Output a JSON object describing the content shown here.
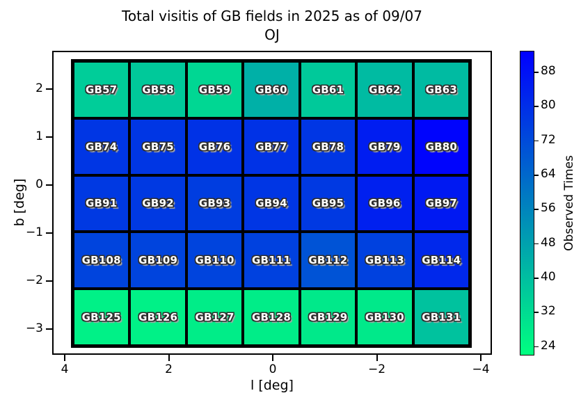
{
  "title": {
    "line1": "Total visitis of GB fields in 2025 as of 09/07",
    "line2": "OJ"
  },
  "x_axis": {
    "label": "l [deg]",
    "ticks": [
      {
        "value": 4,
        "label": "4"
      },
      {
        "value": 2,
        "label": "2"
      },
      {
        "value": 0,
        "label": "0"
      },
      {
        "value": -2,
        "label": "−2"
      },
      {
        "value": -4,
        "label": "−4"
      }
    ]
  },
  "y_axis": {
    "label": "b [deg]",
    "ticks": [
      {
        "value": 2,
        "label": "2"
      },
      {
        "value": 1,
        "label": "1"
      },
      {
        "value": 0,
        "label": "0"
      },
      {
        "value": -1,
        "label": "−1"
      },
      {
        "value": -2,
        "label": "−2"
      },
      {
        "value": -3,
        "label": "−3"
      }
    ]
  },
  "colorbar": {
    "label": "Observed Times",
    "vmin": 22,
    "vmax": 93,
    "color_low": "#00FF80",
    "color_high": "#0000FF",
    "ticks": [
      {
        "value": 88,
        "label": "88"
      },
      {
        "value": 80,
        "label": "80"
      },
      {
        "value": 72,
        "label": "72"
      },
      {
        "value": 64,
        "label": "64"
      },
      {
        "value": 56,
        "label": "56"
      },
      {
        "value": 48,
        "label": "48"
      },
      {
        "value": 40,
        "label": "40"
      },
      {
        "value": 32,
        "label": "32"
      },
      {
        "value": 24,
        "label": "24"
      }
    ]
  },
  "chart_data": {
    "type": "heatmap",
    "title": "Total visitis of GB fields in 2025 as of 09/07 OJ",
    "xlabel": "l [deg]",
    "ylabel": "b [deg]",
    "value_label": "Observed Times",
    "colormap": "green-to-blue (matplotlib winter_r)",
    "color_scale": {
      "vmin": 22,
      "vmax": 93
    },
    "x_axis_inverted": true,
    "xlim": [
      4.25,
      -4.25
    ],
    "ylim": [
      -3.55,
      2.85
    ],
    "column_centers_l_deg": [
      3.3,
      2.2,
      1.1,
      0.0,
      -1.1,
      -2.2,
      -3.3
    ],
    "row_centers_b_deg": [
      2.0,
      0.8,
      -0.4,
      -1.6,
      -2.8
    ],
    "note": "cell values (observed times) estimated from colorbar scale",
    "rows": [
      {
        "cells": [
          {
            "label": "GB57",
            "value": 36
          },
          {
            "label": "GB58",
            "value": 37
          },
          {
            "label": "GB59",
            "value": 33
          },
          {
            "label": "GB60",
            "value": 44
          },
          {
            "label": "GB61",
            "value": 37
          },
          {
            "label": "GB62",
            "value": 41
          },
          {
            "label": "GB63",
            "value": 41
          }
        ]
      },
      {
        "cells": [
          {
            "label": "GB74",
            "value": 78
          },
          {
            "label": "GB75",
            "value": 78
          },
          {
            "label": "GB76",
            "value": 79
          },
          {
            "label": "GB77",
            "value": 79
          },
          {
            "label": "GB78",
            "value": 78
          },
          {
            "label": "GB79",
            "value": 85
          },
          {
            "label": "GB80",
            "value": 92
          }
        ]
      },
      {
        "cells": [
          {
            "label": "GB91",
            "value": 77
          },
          {
            "label": "GB92",
            "value": 77
          },
          {
            "label": "GB93",
            "value": 76
          },
          {
            "label": "GB94",
            "value": 78
          },
          {
            "label": "GB95",
            "value": 77
          },
          {
            "label": "GB96",
            "value": 84
          },
          {
            "label": "GB97",
            "value": 86
          }
        ]
      },
      {
        "cells": [
          {
            "label": "GB108",
            "value": 74
          },
          {
            "label": "GB109",
            "value": 74
          },
          {
            "label": "GB110",
            "value": 74
          },
          {
            "label": "GB111",
            "value": 75
          },
          {
            "label": "GB112",
            "value": 70
          },
          {
            "label": "GB113",
            "value": 75
          },
          {
            "label": "GB114",
            "value": 82
          }
        ]
      },
      {
        "cells": [
          {
            "label": "GB125",
            "value": 26
          },
          {
            "label": "GB126",
            "value": 26
          },
          {
            "label": "GB127",
            "value": 27
          },
          {
            "label": "GB128",
            "value": 27
          },
          {
            "label": "GB129",
            "value": 28
          },
          {
            "label": "GB130",
            "value": 28
          },
          {
            "label": "GB131",
            "value": 39
          }
        ]
      }
    ]
  }
}
